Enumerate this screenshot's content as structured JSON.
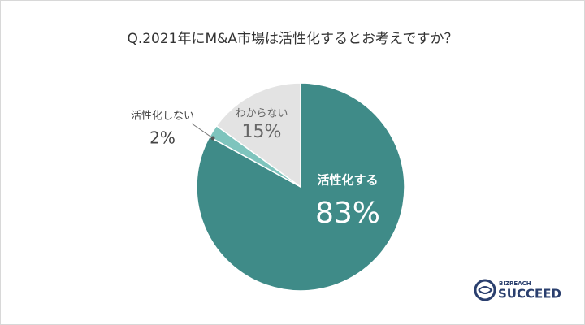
{
  "chart_data": {
    "type": "pie",
    "title": "Q.2021年にM&A市場は活性化するとお考えですか？",
    "categories": [
      "活性化する",
      "活性化しない",
      "わからない"
    ],
    "values": [
      83,
      2,
      15
    ],
    "value_labels": [
      "83%",
      "2%",
      "15%"
    ],
    "colors": [
      "#3f8b88",
      "#7ec4bd",
      "#e3e3e3"
    ]
  },
  "logo": {
    "brand": "BIZREACH",
    "name": "SUCCEED"
  }
}
